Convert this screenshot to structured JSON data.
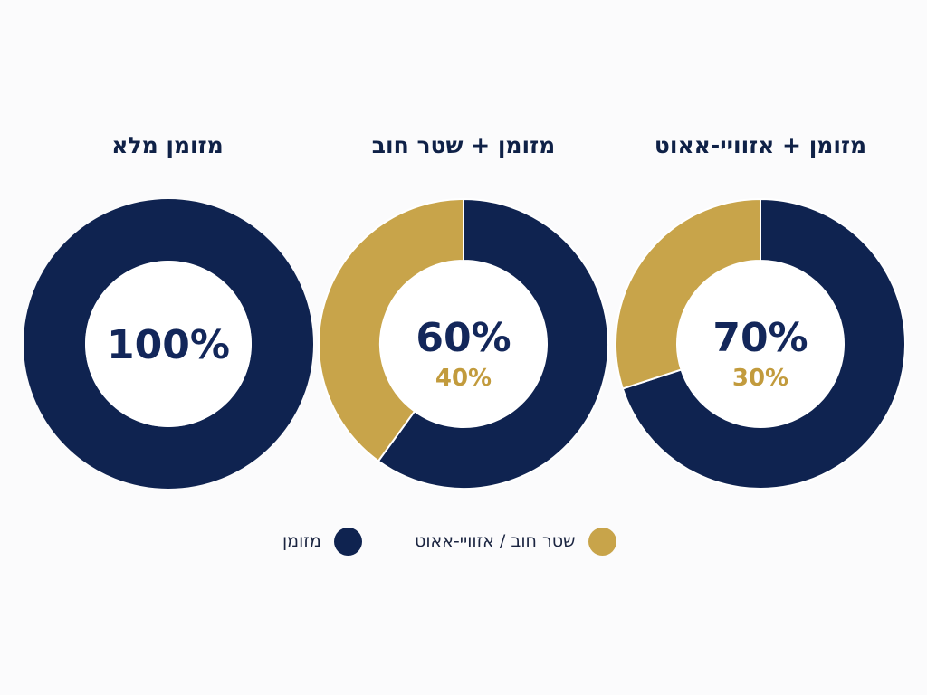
{
  "colors": {
    "primary": "#0f2350",
    "secondary": "#c8a44a",
    "primary_text": "#13275a",
    "secondary_text": "#c29b3d"
  },
  "chart_data": [
    {
      "type": "pie",
      "variant": "donut",
      "title": "מזומן מלא",
      "series": [
        {
          "name": "מזומן",
          "value": 100
        }
      ],
      "center_labels": [
        "100%"
      ]
    },
    {
      "type": "pie",
      "variant": "donut",
      "title": "מזומן + שטר חוב",
      "series": [
        {
          "name": "מזומן",
          "value": 60
        },
        {
          "name": "שטר חוב / אזוויי-אאוט",
          "value": 40
        }
      ],
      "center_labels": [
        "60%",
        "40%"
      ]
    },
    {
      "type": "pie",
      "variant": "donut",
      "title": "מזומן + אזוויי-אאוט",
      "series": [
        {
          "name": "מזומן",
          "value": 70
        },
        {
          "name": "שטר חוב / אזוויי-אאוט",
          "value": 30
        }
      ],
      "center_labels": [
        "70%",
        "30%"
      ]
    }
  ],
  "legend": {
    "placement": "bottom-center",
    "items": [
      {
        "label": "מזומן",
        "color": "#0f2350"
      },
      {
        "label": "שטר חוב / אזוויי-אאוט",
        "color": "#c8a44a"
      }
    ]
  }
}
